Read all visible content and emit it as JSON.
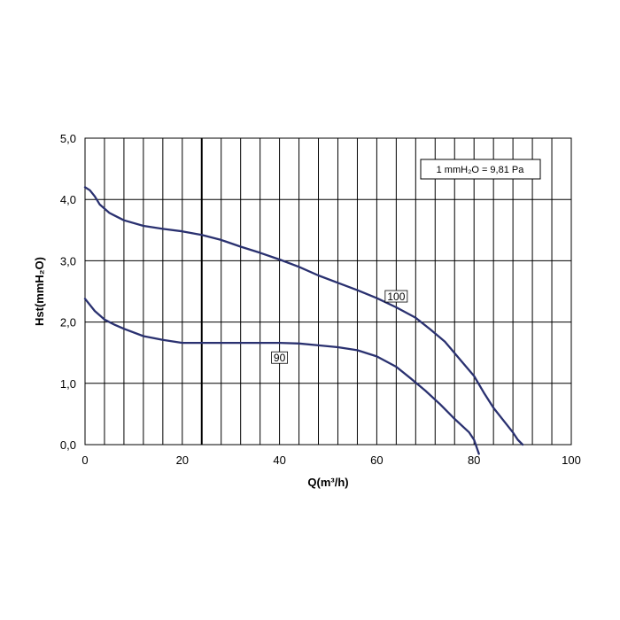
{
  "chart_data": {
    "type": "line",
    "xlabel": "Q(m³/h)",
    "ylabel": "Hst(mmH₂O)",
    "xlim": [
      0,
      100
    ],
    "ylim": [
      0,
      5
    ],
    "x_ticks": [
      "0",
      "20",
      "40",
      "60",
      "80",
      "100"
    ],
    "y_ticks": [
      "0,0",
      "1,0",
      "2,0",
      "3,0",
      "4,0",
      "5,0"
    ],
    "vertical_grid_step": 4,
    "horizontal_grid_step": 1,
    "highlighted_vertical_line_x": 24,
    "grid": true,
    "note": "1 mmH₂O = 9,81 Pa",
    "line_color": "#2a3170",
    "series": [
      {
        "name": "100",
        "x": [
          0,
          1,
          2,
          3,
          5,
          8,
          12,
          16,
          20,
          24,
          28,
          32,
          36,
          40,
          44,
          48,
          52,
          56,
          60,
          64,
          68,
          71,
          74,
          77,
          80,
          82,
          84,
          86,
          88,
          89,
          90
        ],
        "y": [
          4.2,
          4.15,
          4.05,
          3.92,
          3.78,
          3.66,
          3.57,
          3.52,
          3.48,
          3.42,
          3.34,
          3.23,
          3.13,
          3.02,
          2.9,
          2.76,
          2.64,
          2.52,
          2.39,
          2.24,
          2.07,
          1.88,
          1.68,
          1.4,
          1.12,
          0.85,
          0.6,
          0.4,
          0.2,
          0.08,
          0.0
        ]
      },
      {
        "name": "90",
        "x": [
          0,
          2,
          4,
          6,
          8,
          12,
          16,
          20,
          24,
          28,
          32,
          36,
          40,
          44,
          48,
          52,
          56,
          60,
          64,
          67,
          70,
          73,
          76,
          79,
          80,
          81
        ],
        "y": [
          2.38,
          2.18,
          2.04,
          1.96,
          1.89,
          1.77,
          1.71,
          1.66,
          1.66,
          1.66,
          1.66,
          1.66,
          1.66,
          1.65,
          1.62,
          1.59,
          1.54,
          1.44,
          1.27,
          1.08,
          0.88,
          0.66,
          0.42,
          0.2,
          0.08,
          -0.15
        ]
      }
    ]
  }
}
